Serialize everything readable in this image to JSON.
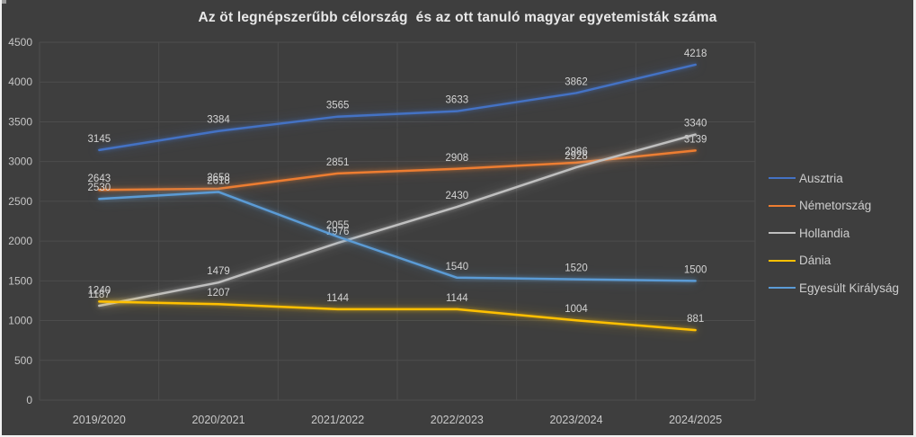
{
  "theme": {
    "background": "#3E3E3E",
    "frame_border": "#F1F1F1",
    "gridline": "#4D4D4D",
    "title_color": "#E8E8E8",
    "axis_text_color": "#C6C6C6",
    "data_label_color": "#D4D4D4",
    "legend_text_color": "#CDCDCD"
  },
  "chart_data": {
    "type": "line",
    "title": "Az öt legnépszerűbb célország  és az ott tanuló magyar egyetemisták száma",
    "categories": [
      "2019/2020",
      "2020/2021",
      "2021/2022",
      "2022/2023",
      "2023/2024",
      "2024/2025"
    ],
    "series": [
      {
        "name": "Ausztria",
        "color": "#4472C4",
        "values": [
          3145,
          3384,
          3565,
          3633,
          3862,
          4218
        ]
      },
      {
        "name": "Németország",
        "color": "#ED7D31",
        "values": [
          2643,
          2658,
          2851,
          2908,
          2986,
          3139
        ]
      },
      {
        "name": "Hollandia",
        "color": "#BFBFBF",
        "values": [
          1187,
          1479,
          1976,
          2430,
          2928,
          3340
        ]
      },
      {
        "name": "Dánia",
        "color": "#FFC000",
        "values": [
          1240,
          1207,
          1144,
          1144,
          1004,
          881
        ]
      },
      {
        "name": "Egyesült Királyság",
        "color": "#5B9BD5",
        "values": [
          2530,
          2618,
          2055,
          1540,
          1520,
          1500
        ]
      }
    ],
    "y_ticks": [
      0,
      500,
      1000,
      1500,
      2000,
      2500,
      3000,
      3500,
      4000,
      4500
    ],
    "ylim": [
      0,
      4500
    ],
    "xlabel": "",
    "ylabel": "",
    "grid": true,
    "data_labels": true,
    "legend_position": "right"
  }
}
